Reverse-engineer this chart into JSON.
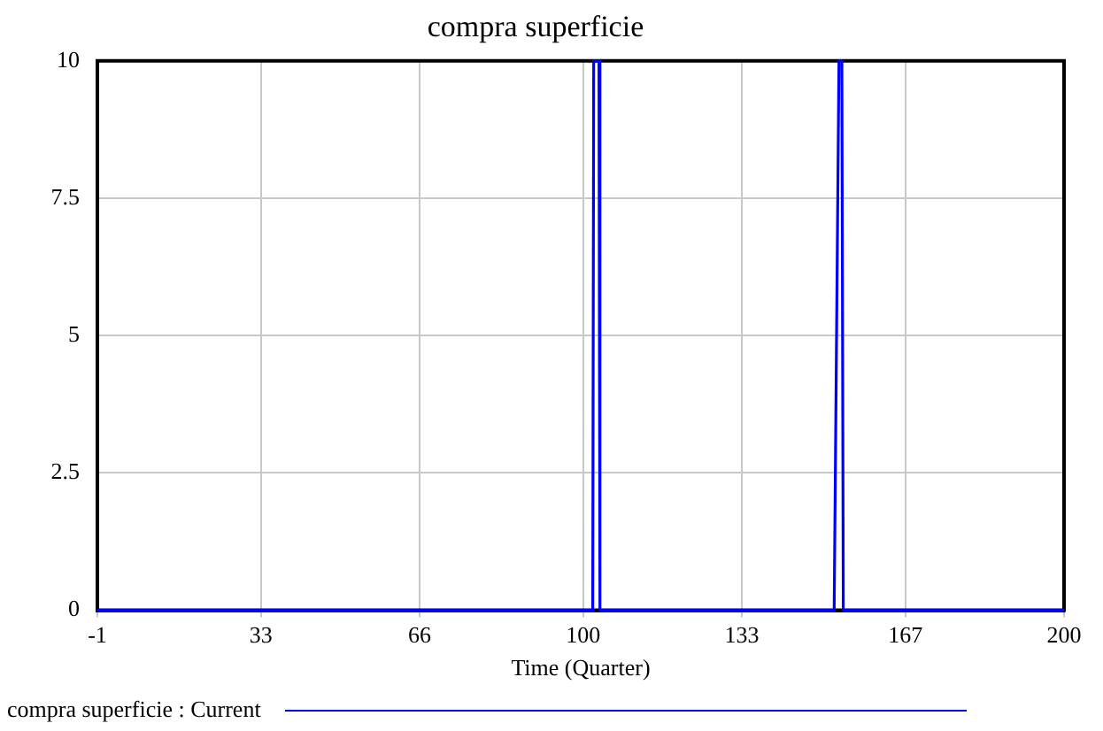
{
  "chart_data": {
    "type": "line",
    "title": "compra superficie",
    "xlabel": "Time (Quarter)",
    "x": [
      -1,
      102,
      102.2,
      103.3,
      103.5,
      152.2,
      153.2,
      153.8,
      154.1,
      200
    ],
    "series": [
      {
        "name": "compra superficie : Current",
        "color": "#0000ff",
        "values": [
          0,
          0,
          10,
          10,
          0,
          0,
          10,
          10,
          0,
          0
        ]
      }
    ],
    "xlim": [
      -1,
      200
    ],
    "xticks": [
      -1,
      33,
      66,
      100,
      133,
      167,
      200
    ],
    "ylim": [
      0,
      10
    ],
    "yticks": [
      0,
      2.5,
      5,
      7.5,
      10
    ],
    "grid": true,
    "legend": "bottom left",
    "marker": "none",
    "line_style": "solid"
  }
}
